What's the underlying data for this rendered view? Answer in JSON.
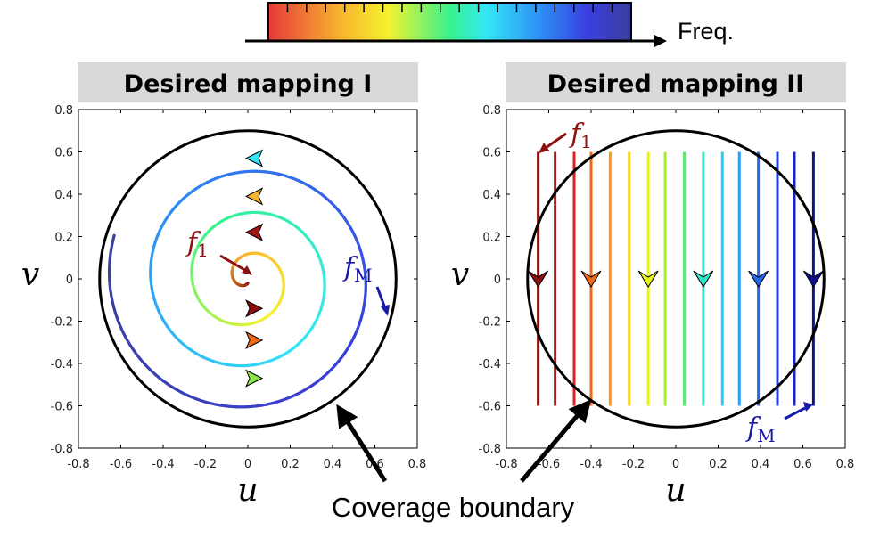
{
  "colorbar": {
    "label": "Freq.",
    "colors": [
      "#e8393b",
      "#f7b52e",
      "#f5f22e",
      "#39f28c",
      "#33e8f5",
      "#2e8ef5",
      "#3a3fe0",
      "#3a3f9a"
    ],
    "tick_count": 19
  },
  "panels": [
    {
      "title": "Desired mapping I",
      "xlabel": "u",
      "ylabel": "v",
      "xlim": [
        -0.8,
        0.8
      ],
      "ylim": [
        -0.8,
        0.8
      ],
      "xticks": [
        "-0.8",
        "-0.6",
        "-0.4",
        "-0.2",
        "0",
        "0.2",
        "0.4",
        "0.6",
        "0.8"
      ],
      "yticks": [
        "0.8",
        "0.6",
        "0.4",
        "0.2",
        "0",
        "-0.2",
        "-0.4",
        "-0.6",
        "-0.8"
      ],
      "boundary_radius": 0.7,
      "annotation_first": {
        "letter": "f",
        "sub": "1",
        "color": "#8b1010"
      },
      "annotation_last": {
        "letter": "f",
        "sub": "M",
        "color": "#1a1aa8"
      }
    },
    {
      "title": "Desired mapping II",
      "xlabel": "u",
      "ylabel": "v",
      "xlim": [
        -0.8,
        0.8
      ],
      "ylim": [
        -0.8,
        0.8
      ],
      "xticks": [
        "-0.8",
        "-0.6",
        "-0.4",
        "-0.2",
        "0",
        "0.2",
        "0.4",
        "0.6",
        "0.8"
      ],
      "yticks": [
        "0.8",
        "0.6",
        "0.4",
        "0.2",
        "0",
        "-0.2",
        "-0.4",
        "-0.6",
        "-0.8"
      ],
      "boundary_radius": 0.7,
      "line_x": [
        -0.65,
        -0.57,
        -0.48,
        -0.4,
        -0.31,
        -0.22,
        -0.13,
        -0.05,
        0.04,
        0.13,
        0.22,
        0.3,
        0.39,
        0.48,
        0.56,
        0.65
      ],
      "line_colors": [
        "#8b1010",
        "#b31818",
        "#e02020",
        "#ee6a1a",
        "#f59a1a",
        "#f5cf1e",
        "#e6f21e",
        "#a8ee2a",
        "#5ae878",
        "#2ee6c6",
        "#2ec8f2",
        "#2a9ef2",
        "#2468e8",
        "#1f3ee0",
        "#1a24c0",
        "#10108a"
      ],
      "line_y_range": [
        -0.6,
        0.6
      ],
      "annotation_first": {
        "letter": "f",
        "sub": "1",
        "color": "#8b1010"
      },
      "annotation_last": {
        "letter": "f",
        "sub": "M",
        "color": "#1a1aa8"
      }
    }
  ],
  "caption": "Coverage boundary"
}
